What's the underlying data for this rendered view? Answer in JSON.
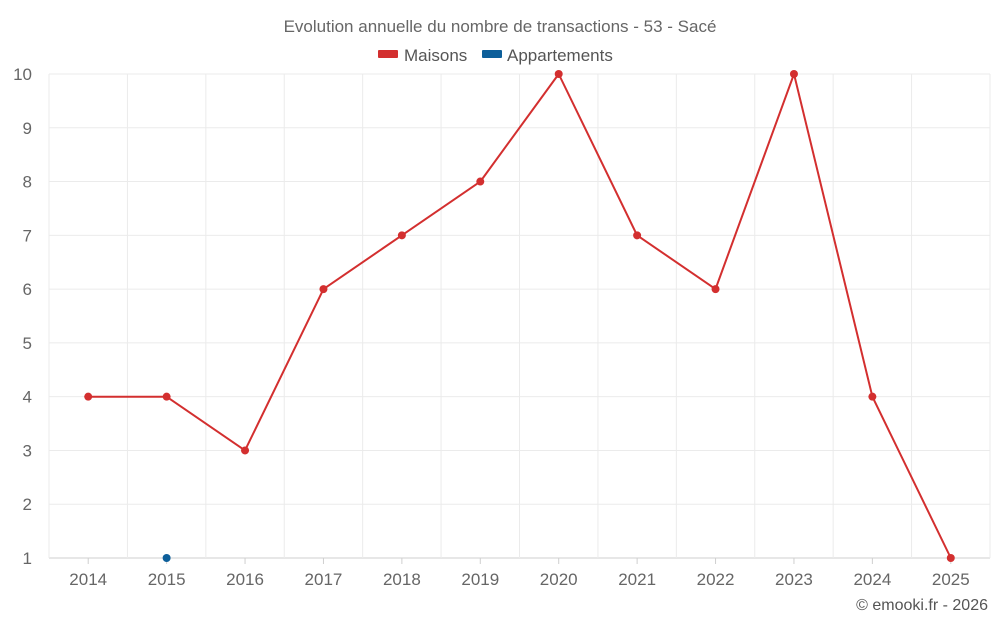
{
  "chart_data": {
    "type": "line",
    "title": "Evolution annuelle du nombre de transactions - 53 - Sacé",
    "categories": [
      "2014",
      "2015",
      "2016",
      "2017",
      "2018",
      "2019",
      "2020",
      "2021",
      "2022",
      "2023",
      "2024",
      "2025"
    ],
    "ylim": [
      1,
      10
    ],
    "yticks": [
      "1",
      "2",
      "3",
      "4",
      "5",
      "6",
      "7",
      "8",
      "9",
      "10"
    ],
    "grid": true,
    "legend_position": "top-center",
    "series": [
      {
        "name": "Maisons",
        "color": "#d32f2f",
        "values": [
          4,
          4,
          3,
          6,
          7,
          8,
          10,
          7,
          6,
          10,
          4,
          1
        ]
      },
      {
        "name": "Appartements",
        "color": "#0d5f9a",
        "values": [
          null,
          1,
          null,
          null,
          null,
          null,
          null,
          null,
          null,
          null,
          null,
          null
        ]
      }
    ],
    "credit": "© emooki.fr - 2026"
  }
}
